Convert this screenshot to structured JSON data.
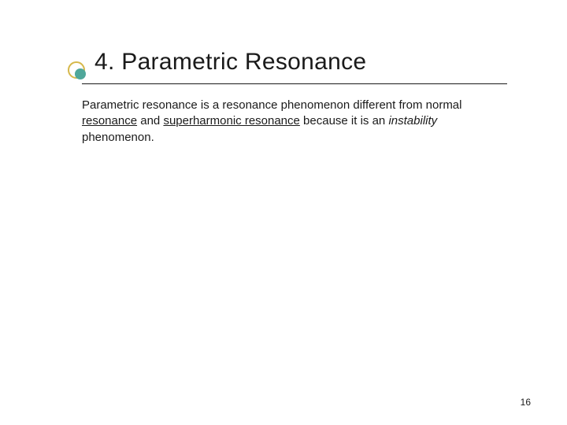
{
  "colors": {
    "text": "#1a1a1a",
    "underline": "#1a1a1a",
    "ornament_ring": "#d6b84a",
    "ornament_disc": "#4fa79a",
    "rule": "#1a1a1a"
  },
  "typography": {
    "title_fontsize_pt": 22,
    "body_fontsize_pt": 11,
    "pagenum_fontsize_pt": 9,
    "font_family": "Arial"
  },
  "title": "4. Parametric Resonance",
  "body": {
    "t1": "Parametric resonance is a resonance phenomenon different from normal ",
    "u1": "resonance",
    "t2": " and ",
    "u2": "superharmonic resonance",
    "t3": " because it is an ",
    "i1": "instability",
    "t4": " phenomenon."
  },
  "page_number": "16"
}
